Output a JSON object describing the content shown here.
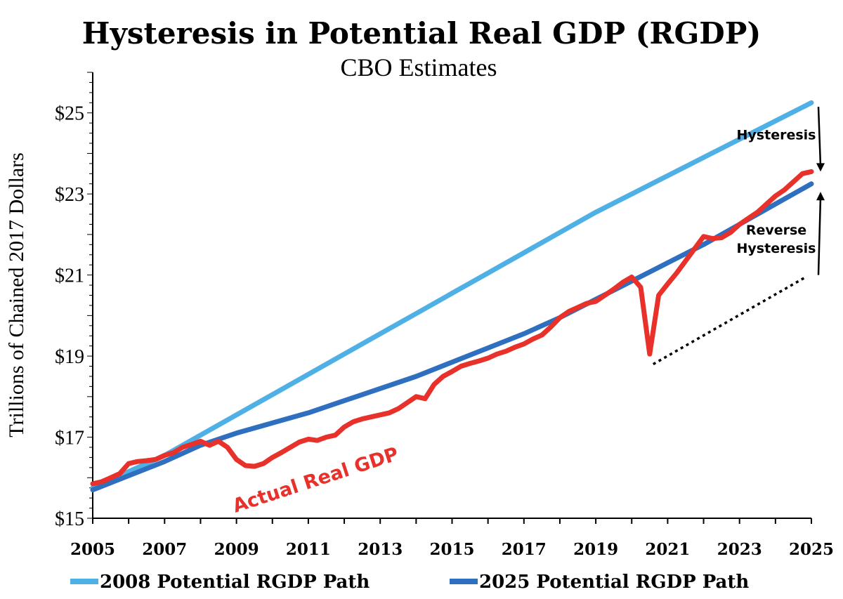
{
  "chart_data": {
    "type": "line",
    "title": "Hysteresis in Potential Real GDP (RGDP)",
    "subtitle": "CBO Estimates",
    "ylabel": "Trillions of Chained 2017 Dollars",
    "xlim": [
      2005,
      2025
    ],
    "ylim": [
      15,
      26
    ],
    "x_ticks": [
      2005,
      2007,
      2009,
      2011,
      2013,
      2015,
      2017,
      2019,
      2021,
      2023,
      2025
    ],
    "x_tick_labels": [
      "2005",
      "2007",
      "2009",
      "2011",
      "2013",
      "2015",
      "2017",
      "2019",
      "2021",
      "2023",
      "2025"
    ],
    "y_ticks": [
      15,
      17,
      19,
      21,
      23,
      25
    ],
    "y_tick_labels": [
      "$15",
      "$17",
      "$19",
      "$21",
      "$23",
      "$25"
    ],
    "legend_position": "bottom",
    "grid": false,
    "series": [
      {
        "name": "2008 Potential RGDP Path",
        "color": "#4fb0e6",
        "points": [
          [
            2005,
            15.75
          ],
          [
            2006,
            16.15
          ],
          [
            2007,
            16.55
          ],
          [
            2008,
            17.05
          ],
          [
            2009,
            17.55
          ],
          [
            2010,
            18.05
          ],
          [
            2011,
            18.55
          ],
          [
            2012,
            19.05
          ],
          [
            2013,
            19.55
          ],
          [
            2014,
            20.05
          ],
          [
            2015,
            20.55
          ],
          [
            2016,
            21.05
          ],
          [
            2017,
            21.55
          ],
          [
            2018,
            22.05
          ],
          [
            2019,
            22.55
          ],
          [
            2020,
            23.0
          ],
          [
            2021,
            23.45
          ],
          [
            2022,
            23.9
          ],
          [
            2023,
            24.35
          ],
          [
            2024,
            24.8
          ],
          [
            2025,
            25.25
          ]
        ]
      },
      {
        "name": "2025 Potential RGDP Path",
        "color": "#2f6fc0",
        "points": [
          [
            2005,
            15.7
          ],
          [
            2006,
            16.05
          ],
          [
            2007,
            16.4
          ],
          [
            2008,
            16.8
          ],
          [
            2009,
            17.1
          ],
          [
            2010,
            17.35
          ],
          [
            2011,
            17.6
          ],
          [
            2012,
            17.9
          ],
          [
            2013,
            18.2
          ],
          [
            2014,
            18.5
          ],
          [
            2015,
            18.85
          ],
          [
            2016,
            19.2
          ],
          [
            2017,
            19.55
          ],
          [
            2018,
            19.95
          ],
          [
            2019,
            20.4
          ],
          [
            2020,
            20.85
          ],
          [
            2021,
            21.3
          ],
          [
            2022,
            21.75
          ],
          [
            2023,
            22.25
          ],
          [
            2024,
            22.75
          ],
          [
            2025,
            23.25
          ]
        ]
      }
    ],
    "actual": {
      "label": "Actual Real GDP",
      "color": "#e8312a",
      "points": [
        [
          2005.0,
          15.85
        ],
        [
          2005.25,
          15.9
        ],
        [
          2005.5,
          16.0
        ],
        [
          2005.75,
          16.1
        ],
        [
          2006.0,
          16.35
        ],
        [
          2006.25,
          16.4
        ],
        [
          2006.5,
          16.42
        ],
        [
          2006.75,
          16.45
        ],
        [
          2007.0,
          16.55
        ],
        [
          2007.25,
          16.62
        ],
        [
          2007.5,
          16.75
        ],
        [
          2007.75,
          16.82
        ],
        [
          2008.0,
          16.9
        ],
        [
          2008.25,
          16.8
        ],
        [
          2008.5,
          16.9
        ],
        [
          2008.75,
          16.75
        ],
        [
          2009.0,
          16.45
        ],
        [
          2009.25,
          16.3
        ],
        [
          2009.5,
          16.28
        ],
        [
          2009.75,
          16.35
        ],
        [
          2010.0,
          16.5
        ],
        [
          2010.25,
          16.62
        ],
        [
          2010.5,
          16.75
        ],
        [
          2010.75,
          16.88
        ],
        [
          2011.0,
          16.95
        ],
        [
          2011.25,
          16.92
        ],
        [
          2011.5,
          17.0
        ],
        [
          2011.75,
          17.05
        ],
        [
          2012.0,
          17.25
        ],
        [
          2012.25,
          17.38
        ],
        [
          2012.5,
          17.45
        ],
        [
          2012.75,
          17.5
        ],
        [
          2013.0,
          17.55
        ],
        [
          2013.25,
          17.6
        ],
        [
          2013.5,
          17.7
        ],
        [
          2013.75,
          17.85
        ],
        [
          2014.0,
          18.0
        ],
        [
          2014.25,
          17.95
        ],
        [
          2014.5,
          18.3
        ],
        [
          2014.75,
          18.5
        ],
        [
          2015.0,
          18.62
        ],
        [
          2015.25,
          18.75
        ],
        [
          2015.5,
          18.82
        ],
        [
          2015.75,
          18.88
        ],
        [
          2016.0,
          18.95
        ],
        [
          2016.25,
          19.05
        ],
        [
          2016.5,
          19.12
        ],
        [
          2016.75,
          19.22
        ],
        [
          2017.0,
          19.3
        ],
        [
          2017.25,
          19.42
        ],
        [
          2017.5,
          19.52
        ],
        [
          2017.75,
          19.72
        ],
        [
          2018.0,
          19.95
        ],
        [
          2018.25,
          20.1
        ],
        [
          2018.5,
          20.2
        ],
        [
          2018.75,
          20.3
        ],
        [
          2019.0,
          20.35
        ],
        [
          2019.25,
          20.5
        ],
        [
          2019.5,
          20.65
        ],
        [
          2019.75,
          20.82
        ],
        [
          2020.0,
          20.95
        ],
        [
          2020.25,
          20.7
        ],
        [
          2020.5,
          19.05
        ],
        [
          2020.75,
          20.5
        ],
        [
          2021.0,
          20.78
        ],
        [
          2021.25,
          21.05
        ],
        [
          2021.5,
          21.35
        ],
        [
          2021.75,
          21.65
        ],
        [
          2022.0,
          21.95
        ],
        [
          2022.25,
          21.9
        ],
        [
          2022.5,
          21.92
        ],
        [
          2022.75,
          22.05
        ],
        [
          2023.0,
          22.25
        ],
        [
          2023.25,
          22.4
        ],
        [
          2023.5,
          22.55
        ],
        [
          2023.75,
          22.75
        ],
        [
          2024.0,
          22.95
        ],
        [
          2024.25,
          23.1
        ],
        [
          2024.5,
          23.3
        ],
        [
          2024.75,
          23.5
        ],
        [
          2025.0,
          23.55
        ]
      ]
    },
    "annotations": [
      {
        "text": "Hysteresis",
        "anchor": [
          2025,
          24.35
        ]
      },
      {
        "text": "Reverse",
        "anchor": [
          2025,
          22.0
        ]
      },
      {
        "text": "Hysteresis",
        "anchor": [
          2025,
          21.55
        ]
      }
    ],
    "hysteresis_arrow": {
      "from": [
        2025,
        25.15
      ],
      "to": [
        2025,
        23.55
      ]
    },
    "reverse_arrow": {
      "from": [
        2025,
        21.0
      ],
      "to": [
        2025,
        23.05
      ]
    },
    "dotted_trend": {
      "from": [
        2020.5,
        18.8
      ],
      "to": [
        2025,
        20.95
      ]
    }
  }
}
